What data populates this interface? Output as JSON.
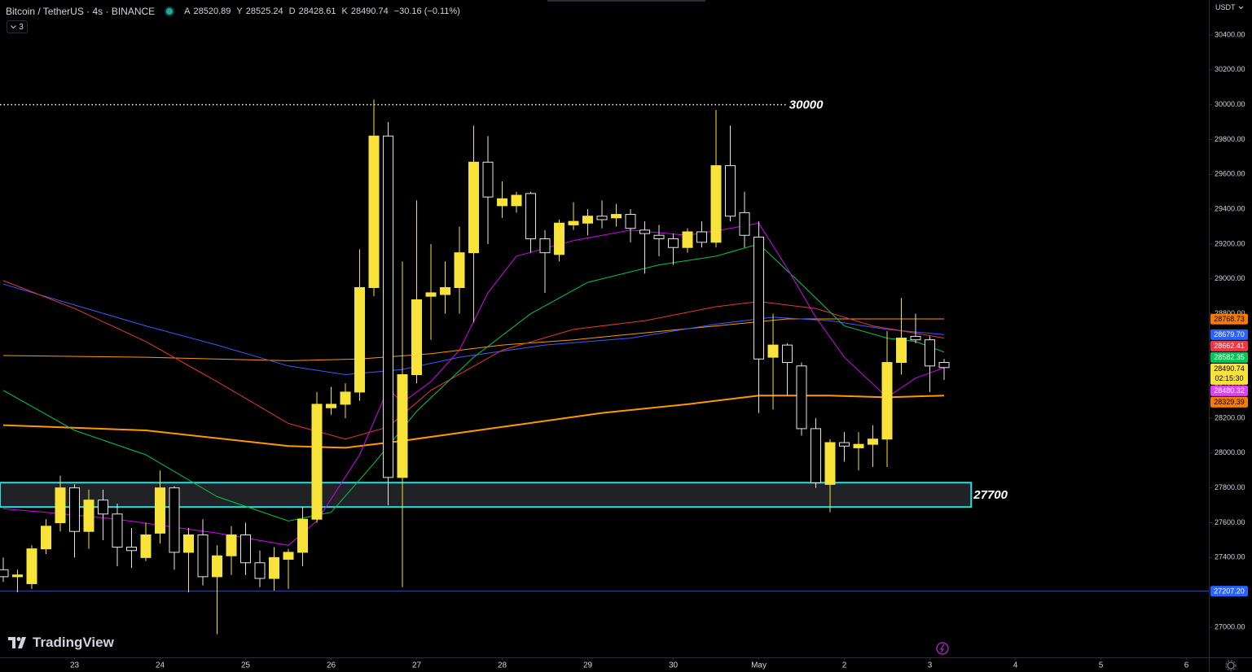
{
  "header": {
    "symbol": "Bitcoin / TetherUS · 4s · BINANCE",
    "ohlc": [
      {
        "key": "A",
        "value": 28520.89
      },
      {
        "key": "Y",
        "value": 28525.24
      },
      {
        "key": "D",
        "value": 28428.61
      },
      {
        "key": "K",
        "value": 28490.74
      }
    ],
    "change": "−30.16 (−0.11%)",
    "indicators_count": "3"
  },
  "currency": "USDT",
  "brand": "TradingView",
  "chart_data": {
    "type": "candlestick",
    "up_color": "#f7e33a",
    "down_color": "#000000",
    "down_border": "#e6e6e6",
    "open": [
      27330,
      27290,
      27250,
      27450,
      27600,
      27800,
      27550,
      27730,
      27650,
      27460,
      27400,
      27540,
      27800,
      27430,
      27530,
      27290,
      27410,
      27530,
      27370,
      27280,
      27390,
      27430,
      27620,
      28260,
      28280,
      28350,
      28950,
      29820,
      27860,
      28450,
      28900,
      28910,
      28950,
      29150,
      29670,
      29420,
      29420,
      29490,
      29230,
      29140,
      29310,
      29320,
      29360,
      29350,
      29370,
      29280,
      29250,
      29230,
      29180,
      29270,
      29210,
      29650,
      29380,
      29240,
      28550,
      28620,
      28500,
      28140,
      27820,
      28060,
      28030,
      28050,
      28080,
      28520,
      28670,
      28650,
      28520
    ],
    "high": [
      27400,
      27330,
      27470,
      27620,
      27870,
      27820,
      27790,
      27790,
      27710,
      27570,
      27600,
      27900,
      27810,
      27570,
      27620,
      27470,
      27580,
      27600,
      27440,
      27460,
      27450,
      27690,
      28350,
      28380,
      28400,
      29170,
      30030,
      29900,
      29100,
      29450,
      29200,
      29100,
      29300,
      29880,
      29820,
      29560,
      29500,
      29500,
      29280,
      29340,
      29440,
      29400,
      29450,
      29430,
      29400,
      29330,
      29310,
      29260,
      29290,
      29330,
      29970,
      29880,
      29500,
      29330,
      28800,
      28630,
      28520,
      28200,
      28080,
      28120,
      28120,
      28160,
      28700,
      28890,
      28800,
      28670,
      28540
    ],
    "low": [
      27260,
      27200,
      27220,
      27420,
      27550,
      27400,
      27450,
      27500,
      27350,
      27340,
      27380,
      27480,
      27330,
      27200,
      27240,
      26960,
      27300,
      27300,
      27230,
      27210,
      27220,
      27350,
      27600,
      28220,
      28200,
      28300,
      28900,
      27700,
      27230,
      28400,
      28650,
      28800,
      28800,
      28750,
      29200,
      29350,
      29380,
      29150,
      28920,
      29100,
      29280,
      29250,
      29290,
      29300,
      29210,
      29030,
      29130,
      29080,
      29150,
      29180,
      29180,
      29330,
      29180,
      28230,
      28250,
      28330,
      28100,
      27800,
      27660,
      27950,
      27900,
      27920,
      27920,
      28450,
      28630,
      28350,
      28420
    ],
    "close": [
      27290,
      27300,
      27450,
      27580,
      27800,
      27550,
      27730,
      27650,
      27460,
      27440,
      27530,
      27800,
      27430,
      27530,
      27290,
      27410,
      27530,
      27370,
      27280,
      27400,
      27430,
      27620,
      28280,
      28280,
      28350,
      28950,
      29820,
      27860,
      28450,
      28880,
      28920,
      28950,
      29150,
      29670,
      29470,
      29460,
      29480,
      29230,
      29150,
      29320,
      29330,
      29360,
      29340,
      29370,
      29290,
      29260,
      29230,
      29180,
      29270,
      29210,
      29650,
      29360,
      29250,
      28540,
      28620,
      28520,
      28140,
      27830,
      28060,
      28040,
      28050,
      28080,
      28520,
      28660,
      28650,
      28500,
      28490.74
    ],
    "ylim": [
      26827,
      30601
    ],
    "yticks": [
      {
        "value": 27000,
        "label": "27000.00"
      },
      {
        "value": 27200,
        "label": "27200.00"
      },
      {
        "value": 27400,
        "label": "27400.00"
      },
      {
        "value": 27600,
        "label": "27600.00"
      },
      {
        "value": 27800,
        "label": "27800.00"
      },
      {
        "value": 28000,
        "label": "28000.00"
      },
      {
        "value": 28200,
        "label": "28200.00"
      },
      {
        "value": 28400,
        "label": "28400.00"
      },
      {
        "value": 28600,
        "label": "28600.00"
      },
      {
        "value": 28800,
        "label": "28800.00"
      },
      {
        "value": 29000,
        "label": "29000.00"
      },
      {
        "value": 29200,
        "label": "29200.00"
      },
      {
        "value": 29400,
        "label": "29400.00"
      },
      {
        "value": 29600,
        "label": "29600.00"
      },
      {
        "value": 29800,
        "label": "29800.00"
      },
      {
        "value": 30000,
        "label": "30000.00"
      },
      {
        "value": 30200,
        "label": "30200.00"
      },
      {
        "value": 30400,
        "label": "30400.00"
      }
    ],
    "xlim": [
      -0.229,
      84.57
    ],
    "xticks": [
      {
        "value": 5,
        "label": "23"
      },
      {
        "value": 11,
        "label": "24"
      },
      {
        "value": 17,
        "label": "25"
      },
      {
        "value": 23,
        "label": "26"
      },
      {
        "value": 29,
        "label": "27"
      },
      {
        "value": 35,
        "label": "28"
      },
      {
        "value": 41,
        "label": "29"
      },
      {
        "value": 47,
        "label": "30"
      },
      {
        "value": 53,
        "label": "May"
      },
      {
        "value": 59,
        "label": "2"
      },
      {
        "value": 65,
        "label": "3"
      },
      {
        "value": 71,
        "label": "4"
      },
      {
        "value": 77,
        "label": "5"
      },
      {
        "value": 83,
        "label": "6"
      }
    ],
    "series": [
      {
        "color": "#ff9800",
        "width": 2,
        "x": [
          0,
          10,
          20,
          24,
          28,
          35,
          42,
          48,
          53,
          58,
          62,
          66
        ],
        "values": [
          28160,
          28130,
          28040,
          28030,
          28070,
          28150,
          28230,
          28280,
          28330,
          28330,
          28320,
          28330
        ]
      },
      {
        "color": "#ff9800",
        "width": 1,
        "x": [
          0,
          10,
          20,
          25,
          30,
          35,
          40,
          45,
          50,
          55,
          60,
          66
        ],
        "values": [
          28560,
          28550,
          28530,
          28540,
          28570,
          28620,
          28650,
          28690,
          28730,
          28770,
          28770,
          28770
        ]
      },
      {
        "color": "#3d5afe",
        "width": 1,
        "x": [
          0,
          5,
          10,
          15,
          20,
          24,
          28,
          32,
          38,
          44,
          50,
          54,
          58,
          62,
          66
        ],
        "values": [
          28970,
          28850,
          28730,
          28620,
          28500,
          28450,
          28480,
          28550,
          28620,
          28660,
          28740,
          28780,
          28760,
          28710,
          28680
        ]
      },
      {
        "color": "#e53935",
        "width": 1,
        "x": [
          0,
          5,
          10,
          15,
          20,
          24,
          27,
          30,
          35,
          40,
          45,
          50,
          53,
          57,
          61,
          66
        ],
        "values": [
          28990,
          28830,
          28640,
          28410,
          28170,
          28080,
          28150,
          28360,
          28590,
          28710,
          28760,
          28840,
          28870,
          28830,
          28730,
          28660
        ]
      },
      {
        "color": "#00c853",
        "width": 1,
        "x": [
          0,
          5,
          10,
          15,
          20,
          23,
          26,
          29,
          33,
          37,
          41,
          46,
          50,
          53,
          56,
          59,
          62,
          64,
          66
        ],
        "values": [
          28360,
          28130,
          27990,
          27750,
          27610,
          27660,
          27940,
          28240,
          28550,
          28800,
          28980,
          29080,
          29130,
          29200,
          28970,
          28730,
          28660,
          28640,
          28580
        ]
      },
      {
        "color": "#d500f9",
        "width": 1,
        "x": [
          0,
          3,
          8,
          15,
          20,
          22,
          25,
          27,
          28,
          30,
          32,
          34,
          36,
          40,
          44,
          48,
          51,
          53,
          55,
          57,
          59,
          62,
          64,
          66
        ],
        "values": [
          27680,
          27660,
          27620,
          27540,
          27470,
          27610,
          27990,
          28370,
          28290,
          28410,
          28590,
          28920,
          29130,
          29220,
          29280,
          29250,
          29290,
          29320,
          29060,
          28780,
          28550,
          28320,
          28430,
          28490
        ]
      }
    ],
    "horizontal_lines": [
      {
        "value": 30000,
        "color": "#ffffff",
        "dotted": true,
        "x_end": 54.9
      },
      {
        "value": 27207.2,
        "color": "#3949ab",
        "dotted": false
      }
    ],
    "zone": {
      "from": 27690,
      "to": 27830,
      "label": "27700",
      "x_end": 67.9,
      "color": "#26e0e6"
    },
    "price_labels": [
      {
        "value": 28768.73,
        "color": "#f57c00",
        "text_color": "#000000"
      },
      {
        "value": 28679.7,
        "label": "28679.70",
        "color": "#2962ff",
        "text_color": "#ffffff"
      },
      {
        "value": 28662.41,
        "color": "#f23645",
        "text_color": "#ffffff"
      },
      {
        "value": 28582.35,
        "color": "#00c853",
        "text_color": "#ffffff"
      },
      {
        "value": 28490.74,
        "color": "#f7e33a",
        "text_color": "#000000",
        "countdown": "02:15:30"
      },
      {
        "value": 28480.32,
        "color": "#e040fb",
        "text_color": "#ffffff"
      },
      {
        "value": 28329.39,
        "color": "#f57c00",
        "text_color": "#000000"
      },
      {
        "value": 27207.2,
        "label": "27207.20",
        "color": "#2962ff",
        "text_color": "#ffffff"
      }
    ]
  }
}
